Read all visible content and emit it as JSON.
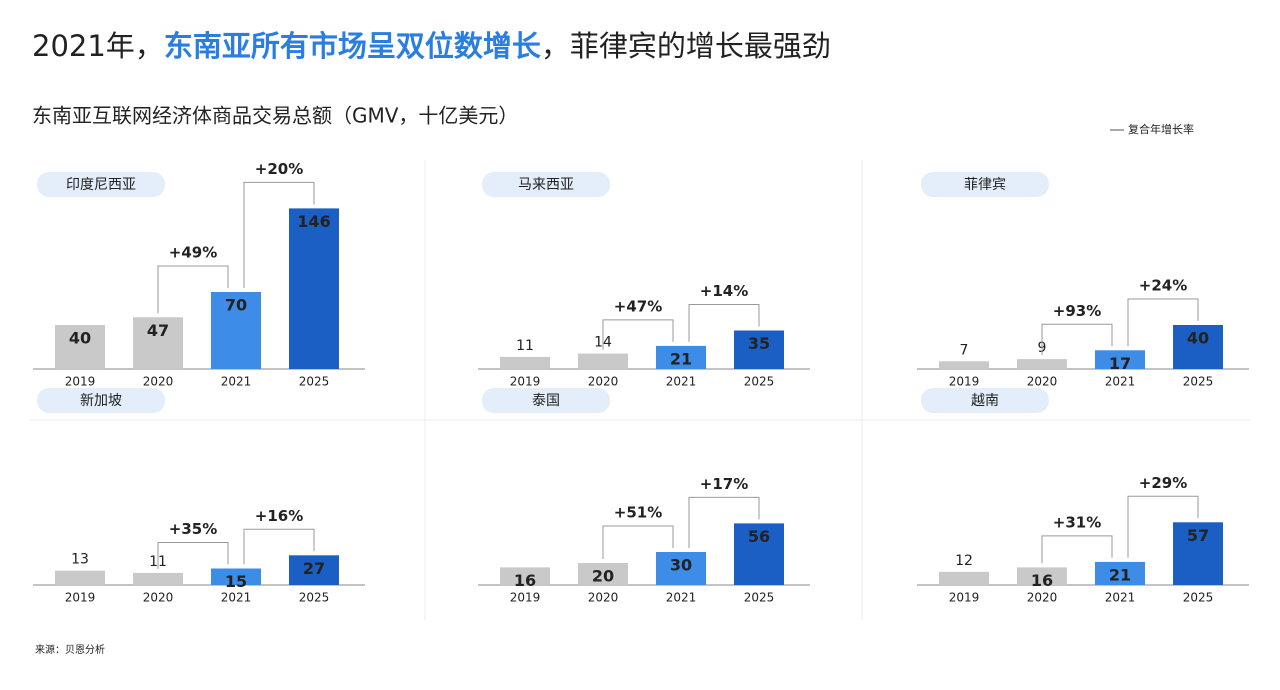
{
  "title_parts": [
    "2021年，",
    "东南亚所有市场呈双位数增长",
    "，菲律宾的增长最强劲"
  ],
  "subtitle": "东南亚互联网经济体商品交易总额（GMV，十亿美元）",
  "legend": "复合年增长率",
  "source": "来源：贝恩分析",
  "chart_data": [
    {
      "type": "bar",
      "title": "印度尼西亚",
      "categories": [
        "2019",
        "2020",
        "2021",
        "2025"
      ],
      "values": [
        40,
        47,
        70,
        146
      ],
      "colors": [
        "#c9c9c9",
        "#c9c9c9",
        "#3d8de8",
        "#1b5ec4"
      ],
      "growth_labels": [
        "+49%",
        "+20%"
      ],
      "ylim": [
        0,
        150
      ]
    },
    {
      "type": "bar",
      "title": "马来西亚",
      "categories": [
        "2019",
        "2020",
        "2021",
        "2025"
      ],
      "values": [
        11,
        14,
        21,
        35
      ],
      "colors": [
        "#c9c9c9",
        "#c9c9c9",
        "#3d8de8",
        "#1b5ec4"
      ],
      "growth_labels": [
        "+47%",
        "+14%"
      ],
      "ylim": [
        0,
        150
      ]
    },
    {
      "type": "bar",
      "title": "菲律宾",
      "categories": [
        "2019",
        "2020",
        "2021",
        "2025"
      ],
      "values": [
        7,
        9,
        17,
        40
      ],
      "colors": [
        "#c9c9c9",
        "#c9c9c9",
        "#3d8de8",
        "#1b5ec4"
      ],
      "growth_labels": [
        "+93%",
        "+24%"
      ],
      "ylim": [
        0,
        150
      ]
    },
    {
      "type": "bar",
      "title": "新加坡",
      "categories": [
        "2019",
        "2020",
        "2021",
        "2025"
      ],
      "values": [
        13,
        11,
        15,
        27
      ],
      "colors": [
        "#c9c9c9",
        "#c9c9c9",
        "#3d8de8",
        "#1b5ec4"
      ],
      "growth_labels": [
        "+35%",
        "+16%"
      ],
      "ylim": [
        0,
        150
      ]
    },
    {
      "type": "bar",
      "title": "泰国",
      "categories": [
        "2019",
        "2020",
        "2021",
        "2025"
      ],
      "values": [
        16,
        20,
        30,
        56
      ],
      "colors": [
        "#c9c9c9",
        "#c9c9c9",
        "#3d8de8",
        "#1b5ec4"
      ],
      "growth_labels": [
        "+51%",
        "+17%"
      ],
      "ylim": [
        0,
        150
      ]
    },
    {
      "type": "bar",
      "title": "越南",
      "categories": [
        "2019",
        "2020",
        "2021",
        "2025"
      ],
      "values": [
        12,
        16,
        21,
        57
      ],
      "colors": [
        "#c9c9c9",
        "#c9c9c9",
        "#3d8de8",
        "#1b5ec4"
      ],
      "growth_labels": [
        "+31%",
        "+29%"
      ],
      "ylim": [
        0,
        150
      ]
    }
  ]
}
